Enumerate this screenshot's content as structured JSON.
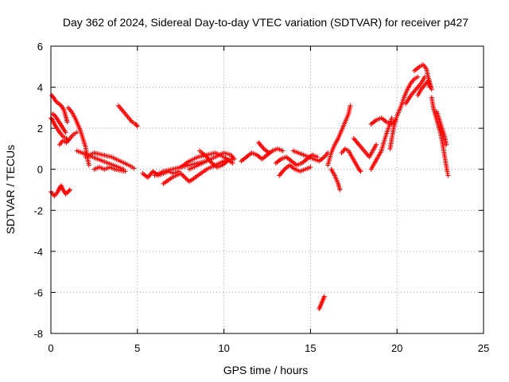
{
  "chart_data": {
    "type": "scatter",
    "title": "Day 362 of 2024, Sidereal Day-to-day VTEC variation (SDTVAR) for receiver p427",
    "xlabel": "GPS time / hours",
    "ylabel": "SDTVAR / TECUs",
    "xlim": [
      0,
      25
    ],
    "ylim": [
      -8,
      6
    ],
    "xticks": [
      0,
      5,
      10,
      15,
      20,
      25
    ],
    "yticks": [
      -8,
      -6,
      -4,
      -2,
      0,
      2,
      4,
      6
    ],
    "grid": true,
    "marker": "+",
    "color": "#ff0000",
    "series": [
      {
        "name": "SDTVAR",
        "segments": [
          [
            [
              0.0,
              2.5
            ],
            [
              0.1,
              2.4
            ],
            [
              0.2,
              2.2
            ],
            [
              0.35,
              2.0
            ],
            [
              0.5,
              1.8
            ],
            [
              0.7,
              1.6
            ],
            [
              0.9,
              1.5
            ],
            [
              1.0,
              1.4
            ]
          ],
          [
            [
              0.05,
              3.6
            ],
            [
              0.15,
              3.5
            ],
            [
              0.3,
              3.3
            ],
            [
              0.45,
              3.2
            ],
            [
              0.6,
              3.1
            ],
            [
              0.75,
              2.9
            ],
            [
              0.85,
              2.6
            ],
            [
              0.95,
              2.3
            ]
          ],
          [
            [
              0.1,
              2.7
            ],
            [
              0.25,
              2.6
            ],
            [
              0.4,
              2.4
            ],
            [
              0.55,
              2.2
            ],
            [
              0.7,
              2.0
            ],
            [
              0.85,
              1.8
            ]
          ],
          [
            [
              0.5,
              1.2
            ],
            [
              0.7,
              1.4
            ],
            [
              0.9,
              1.3
            ],
            [
              1.1,
              1.5
            ],
            [
              1.3,
              1.7
            ],
            [
              1.5,
              1.8
            ]
          ],
          [
            [
              1.0,
              3.0
            ],
            [
              1.2,
              2.8
            ],
            [
              1.4,
              2.5
            ],
            [
              1.55,
              2.2
            ],
            [
              1.7,
              1.9
            ],
            [
              1.85,
              1.5
            ],
            [
              2.0,
              1.1
            ],
            [
              2.1,
              0.6
            ],
            [
              2.2,
              0.2
            ]
          ],
          [
            [
              1.5,
              0.9
            ],
            [
              1.8,
              0.8
            ],
            [
              2.1,
              0.7
            ],
            [
              2.4,
              0.6
            ],
            [
              2.7,
              0.5
            ],
            [
              3.0,
              0.4
            ],
            [
              3.3,
              0.3
            ],
            [
              3.6,
              0.2
            ],
            [
              3.9,
              0.1
            ],
            [
              4.2,
              0.0
            ]
          ],
          [
            [
              2.5,
              0.0
            ],
            [
              2.8,
              0.1
            ],
            [
              3.1,
              0.0
            ],
            [
              3.4,
              0.1
            ],
            [
              3.7,
              0.0
            ],
            [
              4.0,
              -0.05
            ],
            [
              4.3,
              -0.1
            ]
          ],
          [
            [
              2.0,
              0.6
            ],
            [
              2.5,
              0.8
            ],
            [
              3.0,
              0.7
            ],
            [
              3.5,
              0.6
            ],
            [
              4.0,
              0.4
            ],
            [
              4.5,
              0.2
            ],
            [
              4.8,
              0.05
            ]
          ],
          [
            [
              3.9,
              3.1
            ],
            [
              4.1,
              2.9
            ],
            [
              4.3,
              2.7
            ],
            [
              4.5,
              2.5
            ],
            [
              4.7,
              2.3
            ],
            [
              4.9,
              2.2
            ],
            [
              5.0,
              2.1
            ]
          ],
          [
            [
              0.0,
              -1.1
            ],
            [
              0.2,
              -1.3
            ],
            [
              0.4,
              -1.1
            ],
            [
              0.5,
              -0.9
            ],
            [
              0.6,
              -0.8
            ],
            [
              0.7,
              -1.0
            ],
            [
              0.85,
              -1.2
            ],
            [
              1.0,
              -1.1
            ],
            [
              1.1,
              -1.0
            ]
          ],
          [
            [
              5.3,
              -0.2
            ],
            [
              5.6,
              -0.4
            ],
            [
              5.9,
              -0.1
            ],
            [
              6.2,
              -0.3
            ],
            [
              6.5,
              -0.2
            ],
            [
              6.8,
              -0.1
            ],
            [
              7.1,
              -0.2
            ],
            [
              7.4,
              -0.1
            ]
          ],
          [
            [
              6.0,
              -0.3
            ],
            [
              6.5,
              -0.1
            ],
            [
              7.0,
              0.0
            ],
            [
              7.5,
              0.1
            ],
            [
              8.0,
              0.2
            ],
            [
              8.5,
              0.3
            ],
            [
              9.0,
              0.4
            ]
          ],
          [
            [
              6.5,
              -0.7
            ],
            [
              7.0,
              -0.4
            ],
            [
              7.5,
              -0.2
            ],
            [
              8.0,
              -0.6
            ],
            [
              8.5,
              -0.3
            ],
            [
              9.0,
              0.0
            ],
            [
              9.5,
              0.2
            ],
            [
              10.0,
              0.4
            ],
            [
              10.5,
              0.5
            ]
          ],
          [
            [
              8.0,
              0.0
            ],
            [
              8.5,
              0.2
            ],
            [
              9.0,
              0.4
            ],
            [
              9.5,
              0.6
            ],
            [
              10.0,
              0.8
            ],
            [
              10.4,
              0.7
            ],
            [
              10.6,
              0.5
            ]
          ],
          [
            [
              7.5,
              0.1
            ],
            [
              8.0,
              0.4
            ],
            [
              8.5,
              0.6
            ],
            [
              9.0,
              0.7
            ],
            [
              9.5,
              0.8
            ],
            [
              10.0,
              0.6
            ],
            [
              10.5,
              0.3
            ]
          ],
          [
            [
              8.6,
              0.9
            ],
            [
              9.0,
              0.6
            ],
            [
              9.3,
              0.3
            ],
            [
              9.6,
              0.1
            ],
            [
              9.9,
              0.2
            ],
            [
              10.2,
              0.4
            ]
          ],
          [
            [
              11.0,
              0.4
            ],
            [
              11.3,
              0.6
            ],
            [
              11.6,
              0.8
            ],
            [
              11.9,
              0.7
            ],
            [
              12.2,
              0.5
            ],
            [
              12.5,
              0.7
            ],
            [
              12.8,
              0.9
            ],
            [
              13.1,
              1.0
            ],
            [
              13.4,
              0.9
            ]
          ],
          [
            [
              12.0,
              1.3
            ],
            [
              12.3,
              1.0
            ],
            [
              12.6,
              0.8
            ]
          ],
          [
            [
              13.0,
              0.3
            ],
            [
              13.3,
              0.5
            ],
            [
              13.6,
              0.6
            ],
            [
              13.9,
              0.4
            ],
            [
              14.2,
              0.2
            ],
            [
              14.5,
              0.3
            ],
            [
              14.8,
              0.5
            ],
            [
              15.1,
              0.7
            ],
            [
              15.4,
              0.6
            ]
          ],
          [
            [
              13.2,
              -0.3
            ],
            [
              13.5,
              0.0
            ],
            [
              13.8,
              0.2
            ],
            [
              14.1,
              0.0
            ],
            [
              14.4,
              -0.1
            ],
            [
              14.7,
              0.0
            ],
            [
              15.0,
              0.1
            ]
          ],
          [
            [
              14.0,
              0.9
            ],
            [
              14.3,
              0.8
            ],
            [
              14.6,
              0.7
            ],
            [
              14.9,
              0.6
            ],
            [
              15.2,
              0.5
            ],
            [
              15.5,
              0.4
            ],
            [
              15.8,
              0.6
            ],
            [
              16.0,
              0.8
            ]
          ],
          [
            [
              15.5,
              -6.8
            ],
            [
              15.6,
              -6.6
            ],
            [
              15.7,
              -6.4
            ],
            [
              15.8,
              -6.2
            ]
          ],
          [
            [
              16.0,
              0.2
            ],
            [
              16.2,
              0.8
            ],
            [
              16.4,
              1.2
            ],
            [
              16.6,
              1.5
            ],
            [
              16.8,
              1.9
            ],
            [
              17.0,
              2.3
            ],
            [
              17.2,
              2.7
            ],
            [
              17.3,
              3.1
            ]
          ],
          [
            [
              16.2,
              0.0
            ],
            [
              16.4,
              -0.3
            ],
            [
              16.6,
              -0.7
            ],
            [
              16.7,
              -1.0
            ]
          ],
          [
            [
              16.8,
              0.8
            ],
            [
              17.0,
              1.0
            ],
            [
              17.2,
              0.9
            ],
            [
              17.4,
              0.6
            ],
            [
              17.6,
              0.3
            ],
            [
              17.8,
              0.0
            ],
            [
              17.9,
              -0.1
            ]
          ],
          [
            [
              17.5,
              1.5
            ],
            [
              17.8,
              1.2
            ],
            [
              18.0,
              1.0
            ],
            [
              18.2,
              0.8
            ],
            [
              18.4,
              0.6
            ],
            [
              18.6,
              0.9
            ],
            [
              18.8,
              1.2
            ]
          ],
          [
            [
              18.5,
              0.0
            ],
            [
              18.7,
              0.3
            ],
            [
              18.9,
              0.6
            ],
            [
              19.1,
              0.9
            ],
            [
              19.3,
              1.5
            ],
            [
              19.5,
              2.0
            ],
            [
              19.7,
              2.5
            ]
          ],
          [
            [
              18.5,
              2.2
            ],
            [
              18.8,
              2.4
            ],
            [
              19.1,
              2.5
            ],
            [
              19.4,
              2.3
            ],
            [
              19.7,
              2.2
            ],
            [
              19.9,
              2.4
            ]
          ],
          [
            [
              19.6,
              1.0
            ],
            [
              19.8,
              2.0
            ],
            [
              20.0,
              2.6
            ],
            [
              20.2,
              3.0
            ],
            [
              20.4,
              3.5
            ],
            [
              20.6,
              3.9
            ],
            [
              20.8,
              4.2
            ],
            [
              21.0,
              4.4
            ],
            [
              21.2,
              4.5
            ]
          ],
          [
            [
              20.5,
              3.2
            ],
            [
              20.8,
              3.6
            ],
            [
              21.0,
              3.8
            ],
            [
              21.2,
              4.0
            ],
            [
              21.4,
              4.2
            ],
            [
              21.6,
              4.5
            ]
          ],
          [
            [
              21.0,
              4.8
            ],
            [
              21.3,
              5.0
            ],
            [
              21.5,
              5.1
            ],
            [
              21.7,
              4.9
            ],
            [
              21.8,
              4.5
            ],
            [
              21.9,
              4.2
            ],
            [
              22.0,
              3.9
            ]
          ],
          [
            [
              21.2,
              3.6
            ],
            [
              21.4,
              3.9
            ],
            [
              21.6,
              4.1
            ],
            [
              21.8,
              4.3
            ],
            [
              21.9,
              4.0
            ]
          ],
          [
            [
              22.0,
              3.5
            ],
            [
              22.1,
              3.0
            ],
            [
              22.2,
              2.7
            ],
            [
              22.3,
              2.4
            ],
            [
              22.4,
              2.1
            ],
            [
              22.5,
              1.8
            ],
            [
              22.6,
              1.4
            ],
            [
              22.7,
              0.9
            ],
            [
              22.8,
              0.4
            ],
            [
              22.9,
              -0.1
            ],
            [
              22.95,
              -0.3
            ]
          ],
          [
            [
              22.3,
              2.8
            ],
            [
              22.45,
              2.4
            ],
            [
              22.6,
              2.0
            ],
            [
              22.75,
              1.6
            ],
            [
              22.85,
              1.2
            ]
          ]
        ]
      }
    ]
  }
}
